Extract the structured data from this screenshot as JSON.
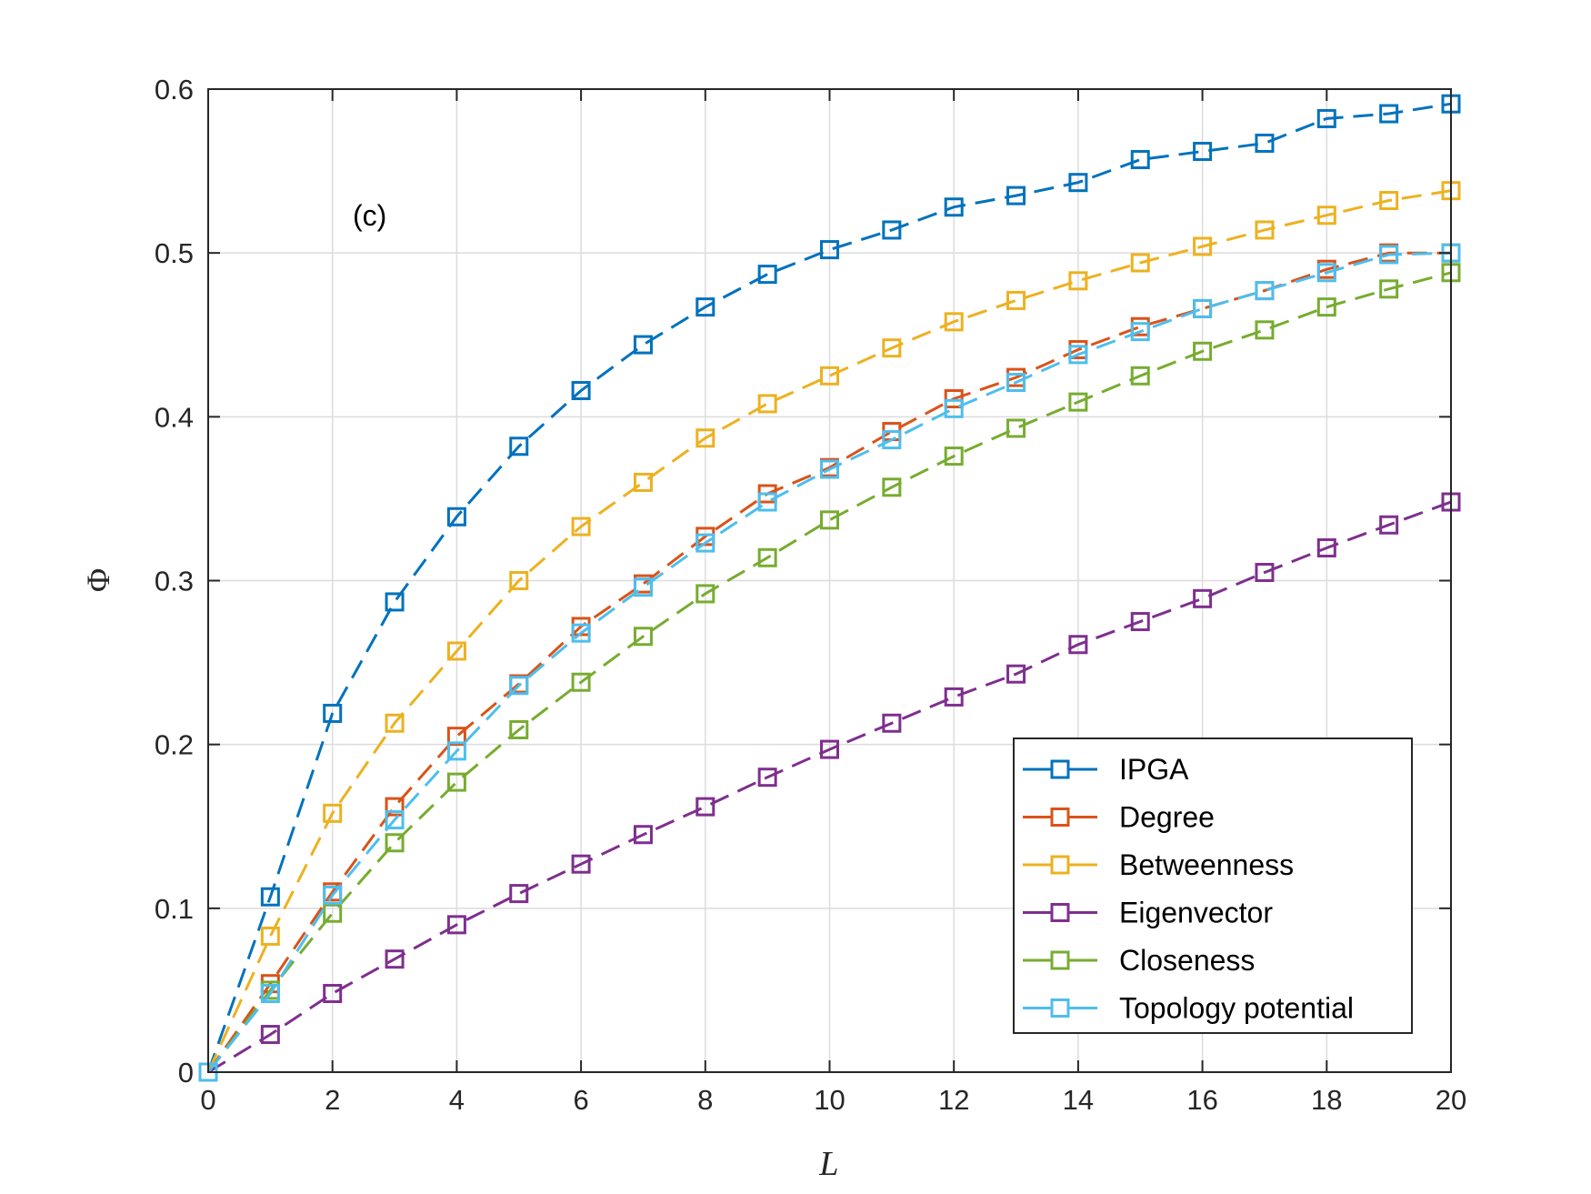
{
  "chart_data": {
    "type": "line",
    "title": "",
    "annotation": "(c)",
    "xlabel": "L",
    "ylabel": "Φ",
    "xlim": [
      0,
      20
    ],
    "ylim": [
      0,
      0.6
    ],
    "xticks": [
      0,
      2,
      4,
      6,
      8,
      10,
      12,
      14,
      16,
      18,
      20
    ],
    "xtick_labels": [
      "0",
      "2",
      "4",
      "6",
      "8",
      "10",
      "12",
      "14",
      "16",
      "18",
      "20"
    ],
    "yticks": [
      0,
      0.1,
      0.2,
      0.3,
      0.4,
      0.5,
      0.6
    ],
    "ytick_labels": [
      "0",
      "0.1",
      "0.2",
      "0.3",
      "0.4",
      "0.5",
      "0.6"
    ],
    "grid": true,
    "legend_position": "bottom-right",
    "x": [
      0,
      1,
      2,
      3,
      4,
      5,
      6,
      7,
      8,
      9,
      10,
      11,
      12,
      13,
      14,
      15,
      16,
      17,
      18,
      19,
      20
    ],
    "series": [
      {
        "name": "IPGA",
        "color": "#0072BD",
        "values": [
          0,
          0.107,
          0.219,
          0.287,
          0.339,
          0.382,
          0.416,
          0.444,
          0.467,
          0.487,
          0.502,
          0.514,
          0.528,
          0.535,
          0.543,
          0.557,
          0.562,
          0.567,
          0.582,
          0.585,
          0.591
        ]
      },
      {
        "name": "Degree",
        "color": "#D95319",
        "values": [
          0,
          0.054,
          0.11,
          0.162,
          0.205,
          0.237,
          0.272,
          0.298,
          0.327,
          0.353,
          0.369,
          0.391,
          0.411,
          0.424,
          0.441,
          0.455,
          0.466,
          0.477,
          0.49,
          0.5,
          0.5
        ]
      },
      {
        "name": "Betweenness",
        "color": "#EDB120",
        "values": [
          0,
          0.083,
          0.158,
          0.213,
          0.257,
          0.3,
          0.333,
          0.36,
          0.387,
          0.408,
          0.425,
          0.442,
          0.458,
          0.471,
          0.483,
          0.494,
          0.504,
          0.514,
          0.523,
          0.532,
          0.538
        ]
      },
      {
        "name": "Eigenvector",
        "color": "#7E2F8E",
        "values": [
          0,
          0.023,
          0.048,
          0.069,
          0.09,
          0.109,
          0.127,
          0.145,
          0.162,
          0.18,
          0.197,
          0.213,
          0.229,
          0.243,
          0.261,
          0.275,
          0.289,
          0.305,
          0.32,
          0.334,
          0.348
        ]
      },
      {
        "name": "Closeness",
        "color": "#77AC30",
        "values": [
          0,
          0.05,
          0.097,
          0.14,
          0.177,
          0.209,
          0.238,
          0.266,
          0.292,
          0.314,
          0.337,
          0.357,
          0.376,
          0.393,
          0.409,
          0.425,
          0.44,
          0.453,
          0.467,
          0.478,
          0.488
        ]
      },
      {
        "name": "Topology potential",
        "color": "#4DBEEE",
        "values": [
          0,
          0.048,
          0.108,
          0.154,
          0.196,
          0.236,
          0.268,
          0.296,
          0.323,
          0.348,
          0.368,
          0.386,
          0.405,
          0.421,
          0.438,
          0.452,
          0.466,
          0.477,
          0.488,
          0.499,
          0.5
        ]
      }
    ]
  }
}
